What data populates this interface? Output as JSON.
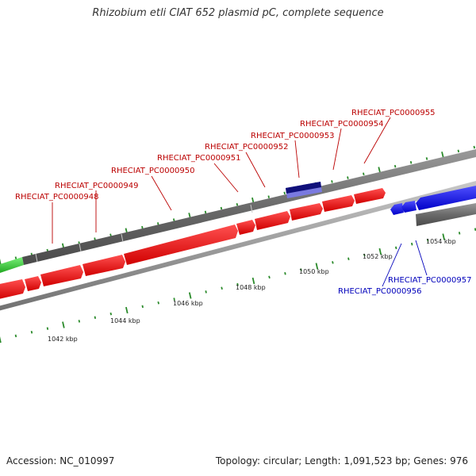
{
  "title": "Rhizobium etli CIAT 652 plasmid pC, complete sequence",
  "footer": {
    "accession": "Accession: NC_010997",
    "stats": "Topology: circular; Length: 1,091,523 bp; Genes: 976"
  },
  "colors": {
    "forward_gene": "#ee1111",
    "reverse_gene": "#1a1aee",
    "gray_feature": "#6a6a6a",
    "green_feature": "#3ccc3c",
    "highlight_dark": "#10107a",
    "highlight_light": "#7a7ae0",
    "backbone": "#909090",
    "tick": "#2a8a2a",
    "forward_label": "#bb0000",
    "reverse_label": "#0000bb",
    "kbp_label": "#222222"
  },
  "scale_labels": [
    "1042 kbp",
    "1044 kbp",
    "1046 kbp",
    "1048 kbp",
    "1050 kbp",
    "1052 kbp",
    "1054 kbp"
  ],
  "gene_labels": [
    {
      "text": "RHECIAT_PC0000948",
      "strand": "forward"
    },
    {
      "text": "RHECIAT_PC0000949",
      "strand": "forward"
    },
    {
      "text": "RHECIAT_PC0000950",
      "strand": "forward"
    },
    {
      "text": "RHECIAT_PC0000951",
      "strand": "forward"
    },
    {
      "text": "RHECIAT_PC0000952",
      "strand": "forward"
    },
    {
      "text": "RHECIAT_PC0000953",
      "strand": "forward"
    },
    {
      "text": "RHECIAT_PC0000954",
      "strand": "forward"
    },
    {
      "text": "RHECIAT_PC0000955",
      "strand": "forward"
    },
    {
      "text": "RHECIAT_PC0000956",
      "strand": "reverse"
    },
    {
      "text": "RHECIAT_PC0000957",
      "strand": "reverse"
    }
  ]
}
